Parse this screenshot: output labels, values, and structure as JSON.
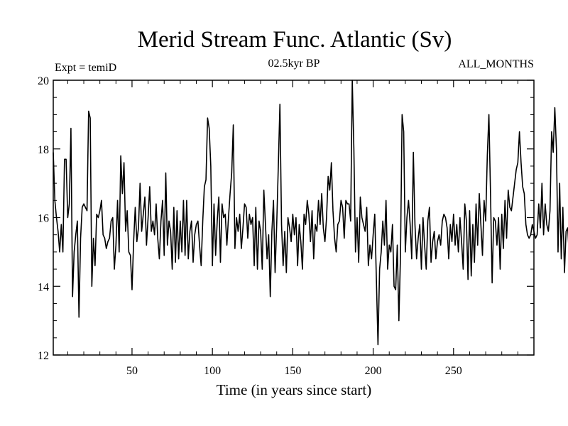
{
  "chart_data": {
    "type": "line",
    "title": "Merid Stream Func. Atlantic (Sv)",
    "subtitle_left": "Expt = temiD",
    "subtitle_center": "02.5kyr BP",
    "subtitle_right": "ALL_MONTHS",
    "xlabel": "Time (in years since start)",
    "ylabel": "",
    "xlim": [
      1,
      300
    ],
    "ylim": [
      12,
      20
    ],
    "xticks": [
      50,
      100,
      150,
      200,
      250
    ],
    "xtick_labels": [
      "50",
      "100",
      "150",
      "200",
      "250"
    ],
    "yticks": [
      12,
      14,
      16,
      18,
      20
    ],
    "ytick_labels": [
      "12",
      "14",
      "16",
      "18",
      "20"
    ],
    "grid": false,
    "line_color": "#000000",
    "series": [
      {
        "name": "Merid Stream Func. Atlantic",
        "x_start": 1,
        "x_step": 1,
        "values": [
          17.9,
          16.5,
          16.0,
          15.6,
          15.0,
          15.8,
          15.0,
          17.7,
          17.7,
          16.0,
          16.4,
          18.6,
          13.7,
          15.0,
          15.5,
          15.9,
          13.1,
          15.4,
          16.3,
          16.4,
          16.3,
          16.2,
          19.1,
          18.9,
          14.0,
          15.4,
          14.6,
          16.1,
          16.0,
          16.2,
          16.5,
          15.5,
          15.4,
          15.1,
          15.3,
          15.4,
          15.9,
          16.0,
          14.5,
          15.2,
          16.5,
          15.0,
          17.8,
          16.7,
          17.6,
          15.6,
          16.2,
          15.0,
          14.9,
          13.9,
          15.3,
          16.3,
          15.3,
          15.7,
          17.0,
          15.6,
          16.1,
          16.6,
          15.2,
          16.0,
          16.9,
          15.6,
          15.9,
          15.5,
          16.4,
          15.4,
          14.8,
          15.9,
          16.5,
          14.9,
          17.3,
          15.2,
          15.9,
          15.6,
          14.5,
          16.3,
          14.7,
          16.2,
          14.8,
          15.9,
          15.0,
          16.5,
          14.9,
          16.5,
          14.8,
          15.6,
          15.9,
          14.7,
          15.5,
          15.8,
          15.9,
          15.2,
          14.6,
          15.9,
          16.9,
          17.1,
          18.9,
          18.6,
          17.5,
          14.6,
          16.4,
          14.9,
          15.9,
          16.6,
          14.7,
          16.4,
          16.0,
          16.1,
          15.2,
          16.0,
          16.7,
          17.3,
          18.7,
          15.1,
          16.0,
          15.6,
          16.1,
          15.1,
          15.7,
          16.4,
          16.3,
          15.4,
          16.1,
          15.8,
          16.0,
          14.6,
          16.3,
          14.5,
          15.9,
          15.6,
          14.5,
          16.8,
          15.8,
          14.8,
          15.5,
          13.7,
          15.6,
          16.5,
          14.4,
          15.8,
          17.5,
          19.3,
          15.8,
          14.6,
          15.6,
          14.4,
          16.0,
          15.7,
          15.3,
          16.1,
          15.5,
          16.0,
          14.6,
          15.8,
          15.3,
          14.5,
          16.1,
          15.8,
          16.5,
          16.1,
          15.3,
          16.2,
          14.8,
          15.8,
          15.6,
          16.5,
          15.8,
          16.7,
          15.7,
          15.3,
          16.0,
          17.2,
          16.8,
          17.6,
          16.2,
          15.4,
          15.0,
          15.8,
          15.9,
          16.5,
          16.3,
          15.4,
          16.5,
          16.4,
          16.4,
          15.9,
          20.0,
          18.0,
          15.0,
          16.0,
          14.7,
          16.6,
          16.0,
          15.8,
          15.6,
          16.3,
          14.6,
          15.2,
          14.8,
          15.5,
          16.1,
          14.2,
          12.3,
          14.5,
          15.0,
          15.9,
          15.2,
          16.5,
          14.5,
          15.2,
          15.0,
          15.8,
          14.0,
          13.9,
          15.2,
          13.0,
          14.9,
          19.0,
          18.5,
          15.0,
          16.0,
          16.5,
          15.8,
          14.8,
          17.9,
          15.8,
          14.8,
          15.4,
          15.8,
          14.5,
          16.0,
          15.2,
          14.5,
          15.9,
          16.3,
          14.7,
          15.3,
          15.6,
          14.8,
          15.3,
          15.5,
          15.2,
          15.9,
          16.1,
          16.0,
          15.7,
          14.8,
          15.8,
          15.3,
          16.1,
          15.2,
          15.8,
          15.0,
          16.0,
          15.3,
          14.5,
          16.4,
          15.9,
          14.2,
          16.2,
          14.3,
          15.8,
          14.7,
          16.4,
          15.2,
          16.7,
          15.8,
          14.9,
          16.5,
          15.9,
          17.8,
          19.0,
          16.7,
          14.1,
          16.0,
          15.9,
          15.2,
          16.0,
          14.5,
          16.1,
          15.1,
          16.5,
          15.4,
          16.8,
          16.3,
          16.2,
          16.6,
          17.0,
          17.4,
          17.6,
          18.5,
          17.6,
          16.9,
          16.7,
          15.8,
          15.5,
          15.4,
          15.5,
          15.8,
          15.6,
          15.4,
          15.5,
          16.4,
          15.7,
          17.0,
          15.5,
          16.4,
          15.8,
          15.6,
          16.2,
          18.5,
          17.9,
          19.2,
          18.0,
          15.0,
          17.0,
          14.8,
          16.3,
          14.4,
          15.6,
          15.7,
          14.9
        ]
      }
    ]
  }
}
